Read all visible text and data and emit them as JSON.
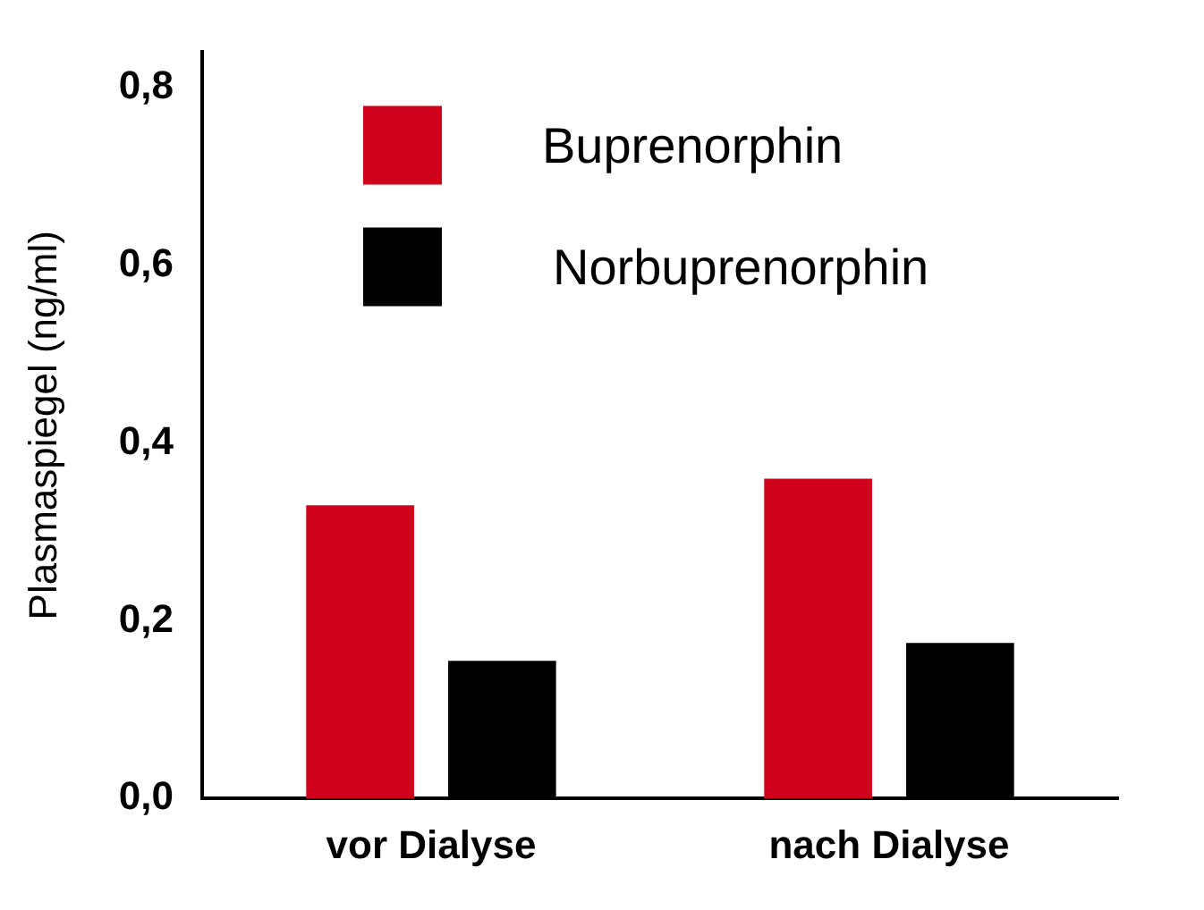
{
  "chart_data": {
    "type": "bar",
    "ylabel": "Plasmaspiegel (ng/ml)",
    "categories": [
      "vor Dialyse",
      "nach Dialyse"
    ],
    "series": [
      {
        "name": "Buprenorphin",
        "color": "#d0011b",
        "values": [
          0.33,
          0.36
        ]
      },
      {
        "name": "Norbuprenorphin",
        "color": "#000000",
        "values": [
          0.155,
          0.175
        ]
      }
    ],
    "ylim": [
      0,
      0.84
    ],
    "yticks": [
      {
        "value": 0,
        "label": "0,0"
      },
      {
        "value": 0.2,
        "label": "0,2"
      },
      {
        "value": 0.4,
        "label": "0,4"
      },
      {
        "value": 0.6,
        "label": "0,6"
      },
      {
        "value": 0.8,
        "label": "0,8"
      }
    ],
    "grid": false,
    "legend": "top left"
  }
}
